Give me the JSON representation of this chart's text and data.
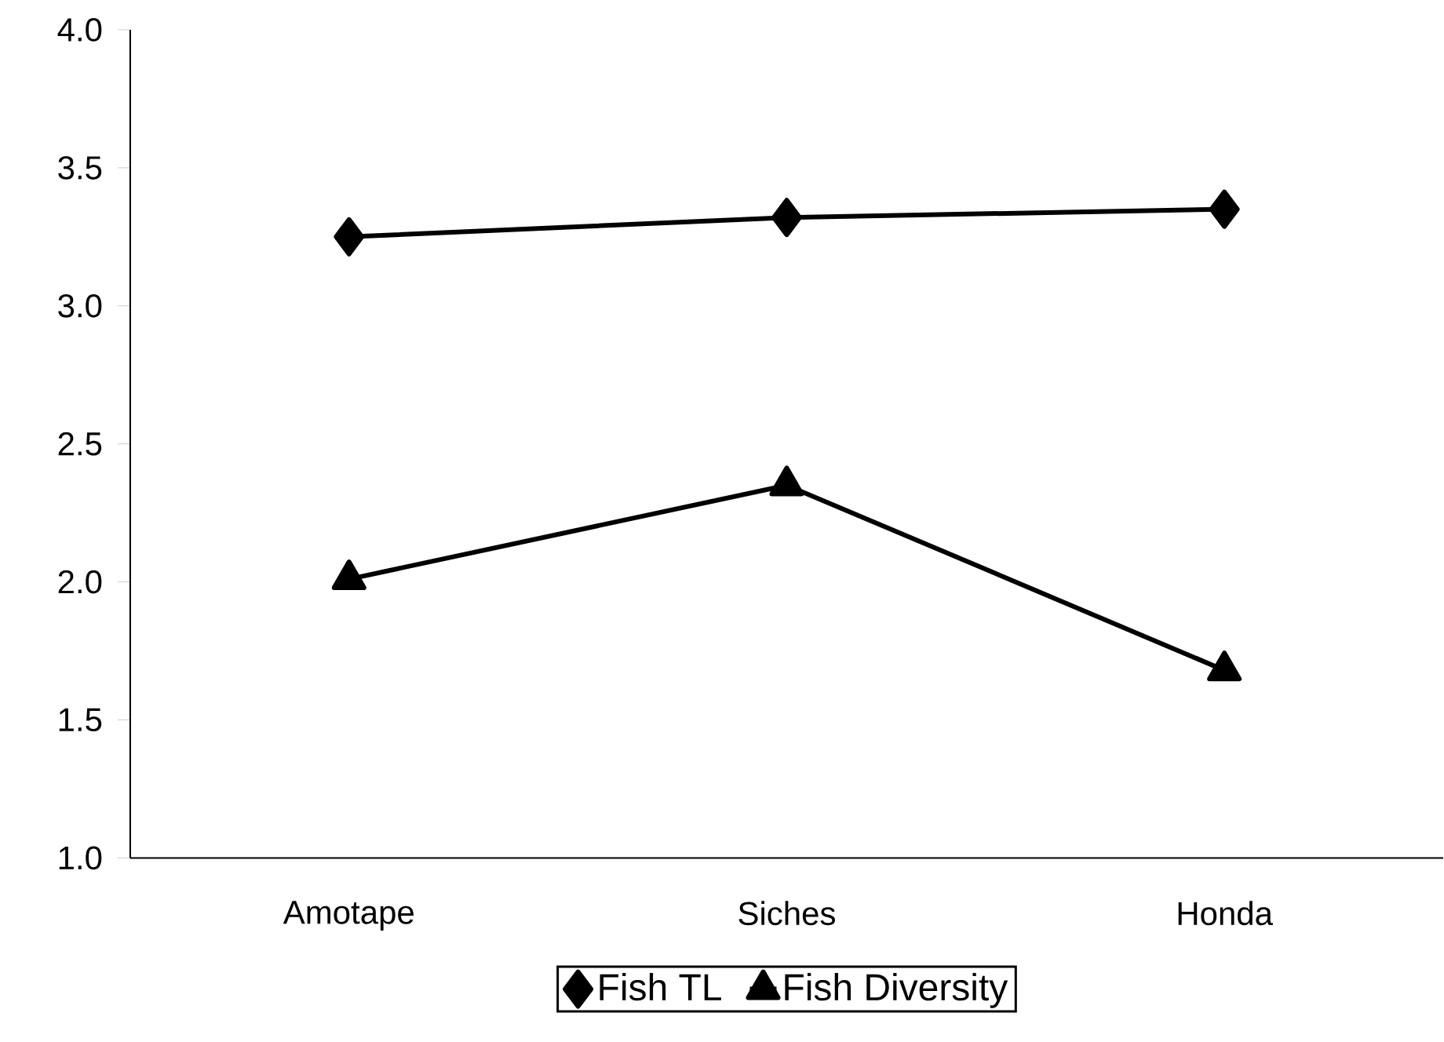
{
  "chart_data": {
    "type": "line",
    "categories": [
      "Amotape",
      "Siches",
      "Honda"
    ],
    "series": [
      {
        "name": "Fish TL",
        "color": "#000000",
        "marker": "diamond",
        "values": [
          3.25,
          3.32,
          3.35
        ]
      },
      {
        "name": "Fish Diversity",
        "color": "#000000",
        "marker": "triangle",
        "values": [
          2.01,
          2.35,
          1.68
        ]
      }
    ],
    "ylim": [
      1.0,
      4.0
    ],
    "yticks": [
      {
        "value": 1.0,
        "label": "1.0"
      },
      {
        "value": 1.5,
        "label": "1.5"
      },
      {
        "value": 2.0,
        "label": "2.0"
      },
      {
        "value": 2.5,
        "label": "2.5"
      },
      {
        "value": 3.0,
        "label": "3.0"
      },
      {
        "value": 3.5,
        "label": "3.5"
      },
      {
        "value": 4.0,
        "label": "4.0"
      }
    ],
    "grid": false,
    "legend": "bottom",
    "line_style": "solid"
  }
}
